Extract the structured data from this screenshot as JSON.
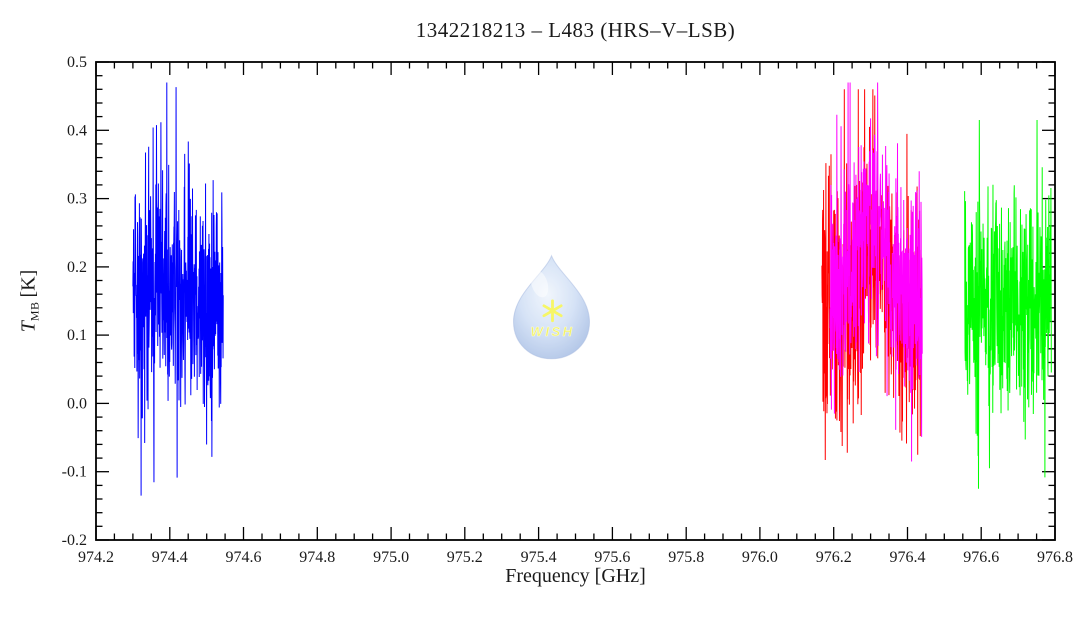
{
  "figure": {
    "title": "1342218213 – L483 (HRS–V–LSB)",
    "background_color": "#ffffff",
    "frame_color": "#000000"
  },
  "chart_data": {
    "type": "line",
    "subtype": "noisy-spectra-segments",
    "title": "1342218213 – L483 (HRS–V–LSB)",
    "xlabel": "Frequency [GHz]",
    "ylabel": "T_MB [K]",
    "ylabel_parts": {
      "symbol": "T",
      "subscript": "MB",
      "unit": "[K]"
    },
    "xlim": [
      974.2,
      976.8
    ],
    "ylim": [
      -0.2,
      0.5
    ],
    "x_major_ticks": [
      974.2,
      974.4,
      974.6,
      974.8,
      975.0,
      975.2,
      975.4,
      975.6,
      975.8,
      976.0,
      976.2,
      976.4,
      976.6,
      976.8
    ],
    "x_minor_step": 0.05,
    "y_major_ticks": [
      -0.2,
      -0.1,
      0.0,
      0.1,
      0.2,
      0.3,
      0.4,
      0.5
    ],
    "y_minor_step": 0.02,
    "grid": false,
    "legend": "none",
    "noise_seed": 1342,
    "series": [
      {
        "name": "spectrum-blue",
        "color": "#0000ff",
        "x_start": 974.3,
        "x_end": 974.545,
        "channels": 430,
        "baseline": 0.16,
        "baseline_drift": -0.04,
        "sigma": 0.085,
        "spike_fraction": 0.04,
        "spike_scale": 1.9,
        "y_min": -0.135,
        "y_max": 0.47,
        "core_range": [
          0.07,
          0.25
        ],
        "line_feature": null
      },
      {
        "name": "spectrum-red",
        "color": "#ff0000",
        "x_start": 976.168,
        "x_end": 976.437,
        "channels": 470,
        "baseline": 0.14,
        "baseline_drift": 0.0,
        "sigma": 0.092,
        "spike_fraction": 0.05,
        "spike_scale": 1.9,
        "y_min": -0.09,
        "y_max": 0.46,
        "core_range": [
          0.05,
          0.24
        ],
        "line_feature": {
          "center": 976.305,
          "amplitude": 0.1,
          "sigma_ghz": 0.03
        }
      },
      {
        "name": "spectrum-magenta",
        "color": "#ff00ff",
        "x_start": 976.19,
        "x_end": 976.44,
        "channels": 460,
        "baseline": 0.16,
        "baseline_drift": 0.0,
        "sigma": 0.072,
        "spike_fraction": 0.05,
        "spike_scale": 1.8,
        "y_min": -0.085,
        "y_max": 0.47,
        "core_range": [
          0.09,
          0.24
        ],
        "line_feature": {
          "center": 976.305,
          "amplitude": 0.12,
          "sigma_ghz": 0.03
        }
      },
      {
        "name": "spectrum-green",
        "color": "#00ff00",
        "x_start": 976.555,
        "x_end": 976.79,
        "channels": 420,
        "baseline": 0.145,
        "baseline_drift": 0.0,
        "sigma": 0.082,
        "spike_fraction": 0.04,
        "spike_scale": 1.9,
        "y_min": -0.125,
        "y_max": 0.415,
        "core_range": [
          0.06,
          0.24
        ],
        "line_feature": null
      }
    ],
    "watermark": {
      "label": "WISH",
      "x_ghz": 975.435,
      "y_k": 0.143,
      "drop_fill_light": "#eef4fc",
      "drop_fill_mid": "#cdddf5",
      "drop_fill_dark": "#9fb8e2",
      "star_color": "#f5f542",
      "text_color": "#f0f046",
      "opacity": 0.8
    }
  }
}
